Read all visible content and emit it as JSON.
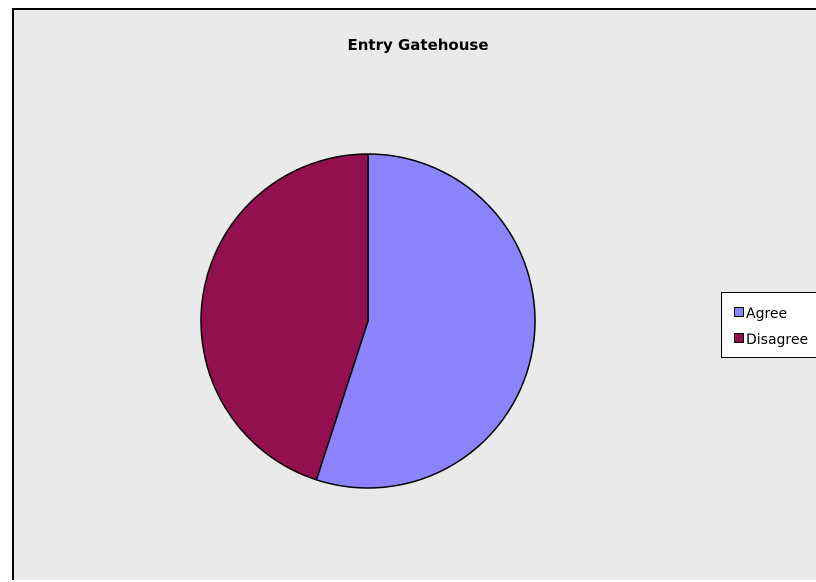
{
  "chart_data": {
    "type": "pie",
    "title": "Entry Gatehouse",
    "slices": [
      {
        "label": "Agree",
        "value": 55,
        "color": "#8c84ff"
      },
      {
        "label": "Disagree",
        "value": 45,
        "color": "#93104f"
      }
    ],
    "legend": {
      "placement": "right"
    }
  }
}
